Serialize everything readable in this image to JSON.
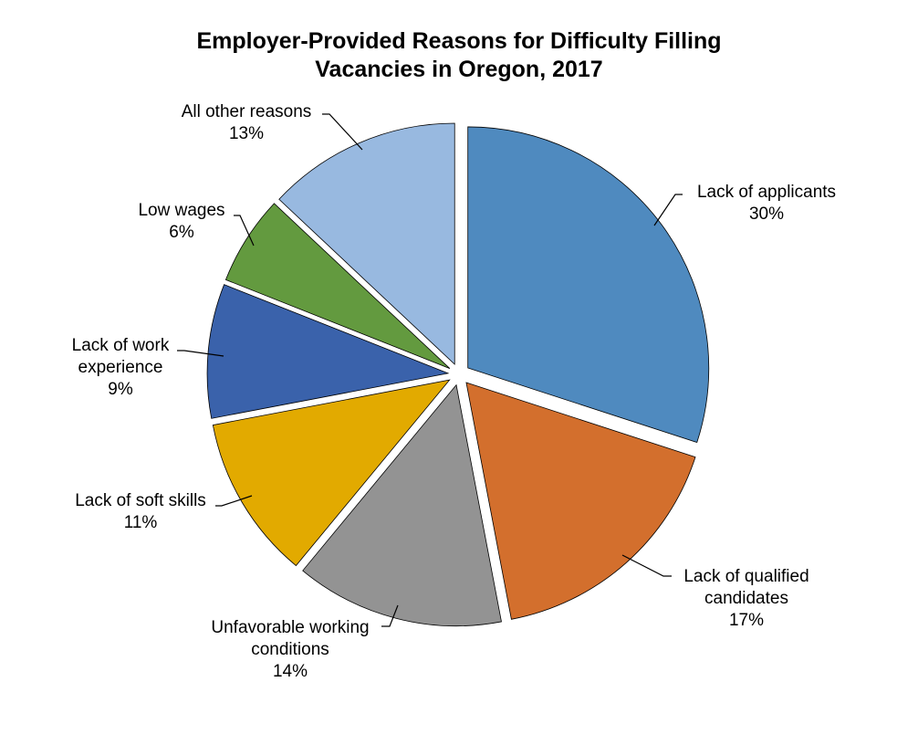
{
  "chart_data": {
    "type": "pie",
    "title_lines": [
      "Employer-Provided Reasons for Difficulty Filling",
      "Vacancies in Oregon, 2017"
    ],
    "slices": [
      {
        "label_lines": [
          "Lack of applicants"
        ],
        "value": 30,
        "value_label": "30%",
        "color": "#4F8ABF"
      },
      {
        "label_lines": [
          "Lack of qualified",
          "candidates"
        ],
        "value": 17,
        "value_label": "17%",
        "color": "#D36F2D"
      },
      {
        "label_lines": [
          "Unfavorable working",
          "conditions"
        ],
        "value": 14,
        "value_label": "14%",
        "color": "#939393"
      },
      {
        "label_lines": [
          "Lack of soft skills"
        ],
        "value": 11,
        "value_label": "11%",
        "color": "#E2AA00"
      },
      {
        "label_lines": [
          "Lack of work",
          "experience"
        ],
        "value": 9,
        "value_label": "9%",
        "color": "#3A62AB"
      },
      {
        "label_lines": [
          "Low wages"
        ],
        "value": 6,
        "value_label": "6%",
        "color": "#639A3F"
      },
      {
        "label_lines": [
          "All other reasons"
        ],
        "value": 13,
        "value_label": "13%",
        "color": "#98B9E0"
      }
    ],
    "start_angle": "12 o'clock",
    "direction": "clockwise",
    "exploded": true,
    "legend": "none",
    "data_labels": "outside with leader lines"
  }
}
